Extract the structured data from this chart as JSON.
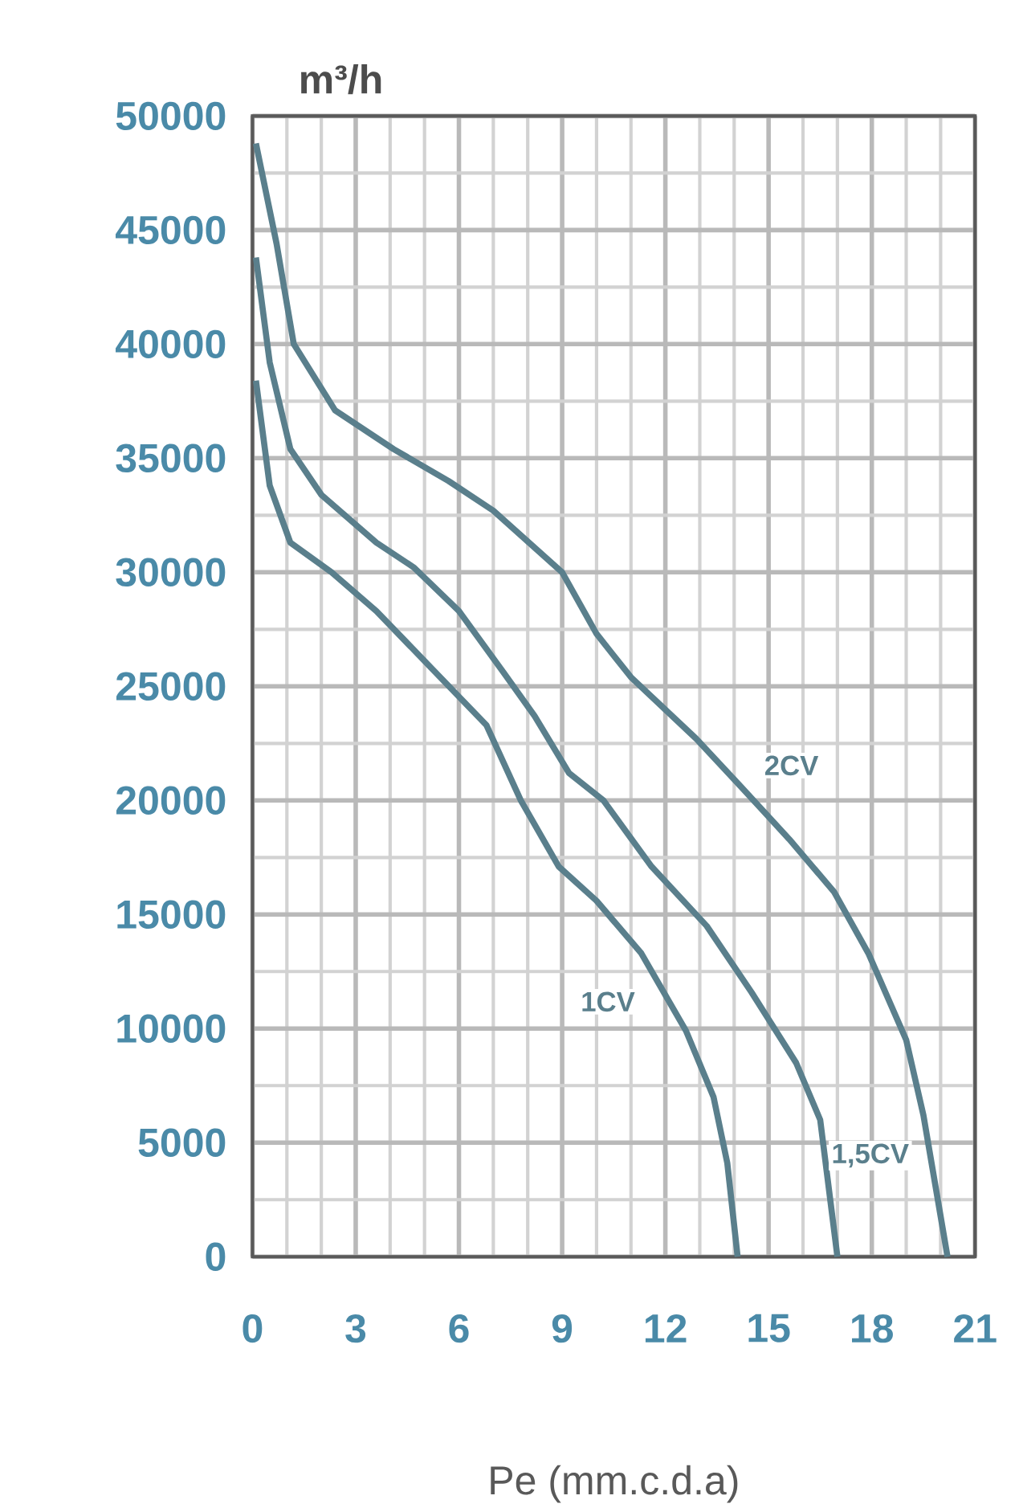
{
  "chart_data": {
    "type": "line",
    "xlabel": "Pe (mm.c.d.a)",
    "ylabel": "m³/h",
    "xlim": [
      0,
      21
    ],
    "xticks": [
      0,
      3,
      6,
      9,
      12,
      15,
      18,
      21
    ],
    "ylim": [
      0,
      50000
    ],
    "yticks": [
      0,
      5000,
      10000,
      15000,
      20000,
      25000,
      30000,
      35000,
      40000,
      45000,
      50000
    ],
    "grid": true,
    "marker": "none",
    "line_style": "solid",
    "series": [
      {
        "name": "2CV",
        "color": "#5a7f8c",
        "x": [
          0.1,
          0.7,
          1.2,
          2.4,
          4.1,
          5.7,
          7.0,
          9.0,
          10.0,
          11.0,
          12.9,
          14.2,
          15.6,
          16.9,
          17.9,
          19.0,
          19.5,
          20.2
        ],
        "values": [
          48800,
          44400,
          40000,
          37100,
          35400,
          34000,
          32700,
          30000,
          27300,
          25400,
          22700,
          20600,
          18300,
          16000,
          13300,
          9500,
          6200,
          0
        ]
      },
      {
        "name": "1,5CV",
        "color": "#5a7f8c",
        "x": [
          0.1,
          0.5,
          1.1,
          2.0,
          3.6,
          4.7,
          6.0,
          7.3,
          8.2,
          9.2,
          10.2,
          11.6,
          13.2,
          14.5,
          15.8,
          16.5,
          17.0
        ],
        "values": [
          43800,
          39200,
          35400,
          33400,
          31300,
          30200,
          28300,
          25600,
          23700,
          21200,
          20000,
          17100,
          14500,
          11600,
          8500,
          6000,
          0
        ]
      },
      {
        "name": "1CV",
        "color": "#5a7f8c",
        "x": [
          0.1,
          0.5,
          1.1,
          2.3,
          3.6,
          5.2,
          6.8,
          7.8,
          8.9,
          10.0,
          11.3,
          12.6,
          13.4,
          13.8,
          14.1
        ],
        "values": [
          38400,
          33800,
          31300,
          30000,
          28300,
          25800,
          23300,
          20000,
          17100,
          15600,
          13300,
          9900,
          7000,
          4100,
          0
        ]
      }
    ]
  }
}
